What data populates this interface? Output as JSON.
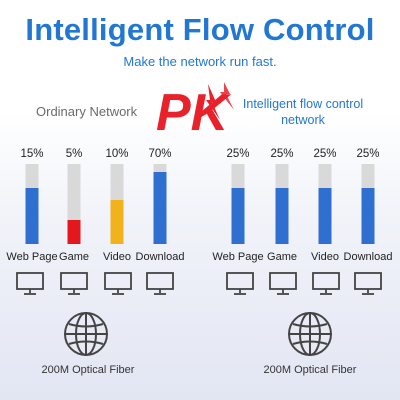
{
  "title": "Intelligent Flow Control",
  "subtitle": "Make the network run fast.",
  "left_heading": "Ordinary Network",
  "right_heading": "Intelligent flow control network",
  "logo_text": "PK",
  "left_footer": "200M Optical Fiber",
  "right_footer": "200M Optical Fiber",
  "colors": {
    "accent": "#2277d3",
    "bar_track": "#d9d9d9",
    "logo": "#e8212b"
  },
  "chart_data": [
    {
      "type": "bar",
      "categories": [
        "Web Page",
        "Game",
        "Video",
        "Download"
      ],
      "values": [
        15,
        5,
        10,
        70
      ],
      "value_labels": [
        "15%",
        "5%",
        "10%",
        "70%"
      ],
      "fill_levels": [
        0.7,
        0.3,
        0.55,
        0.9
      ],
      "colors": [
        "#2f6fcf",
        "#e4161e",
        "#f2b21b",
        "#2f6fcf"
      ],
      "ylim": [
        0,
        100
      ]
    },
    {
      "type": "bar",
      "categories": [
        "Web Page",
        "Game",
        "Video",
        "Download"
      ],
      "values": [
        25,
        25,
        25,
        25
      ],
      "value_labels": [
        "25%",
        "25%",
        "25%",
        "25%"
      ],
      "fill_levels": [
        0.7,
        0.7,
        0.7,
        0.7
      ],
      "colors": [
        "#2f6fcf",
        "#2f6fcf",
        "#2f6fcf",
        "#2f6fcf"
      ],
      "ylim": [
        0,
        100
      ]
    }
  ]
}
